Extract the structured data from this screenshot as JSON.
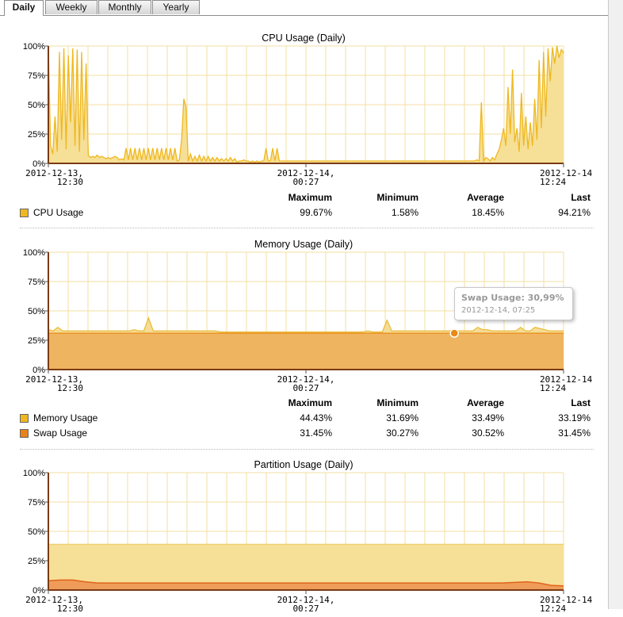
{
  "tabs": [
    {
      "label": "Daily",
      "active": true
    },
    {
      "label": "Weekly",
      "active": false
    },
    {
      "label": "Monthly",
      "active": false
    },
    {
      "label": "Yearly",
      "active": false
    }
  ],
  "stat_headers": [
    "Maximum",
    "Minimum",
    "Average",
    "Last"
  ],
  "colors": {
    "cpu_fill": "#f6df96",
    "cpu_line": "#efb81f",
    "memory_fill": "#f4dd96",
    "memory_line": "#ecb830",
    "swap_fill": "#eeb460",
    "swap_line": "#e88a18",
    "partition_fill": "#f6df96",
    "partition_low_fill": "#ef9c5a",
    "partition_low_line": "#e0631c",
    "grid": "#f3dfa2",
    "axis": "#7a3b14"
  },
  "charts": {
    "cpu": {
      "title": "CPU Usage (Daily)",
      "ticks_y": [
        "100%",
        "75%",
        "50%",
        "25%",
        "0%"
      ],
      "ticks_x": [
        {
          "line1": "2012-12-13,",
          "line2": "12:30"
        },
        {
          "line1": "2012-12-14,",
          "line2": "00:27"
        },
        {
          "line1": "2012-12-14",
          "line2": "12:24"
        }
      ],
      "rows": [
        {
          "name": "CPU Usage",
          "color": "#f0b820",
          "max": "99.67%",
          "min": "1.58%",
          "avg": "18.45%",
          "last": "94.21%"
        }
      ]
    },
    "memory": {
      "title": "Memory Usage (Daily)",
      "ticks_y": [
        "100%",
        "75%",
        "50%",
        "25%",
        "0%"
      ],
      "ticks_x": [
        {
          "line1": "2012-12-13,",
          "line2": "12:30"
        },
        {
          "line1": "2012-12-14,",
          "line2": "00:27"
        },
        {
          "line1": "2012-12-14",
          "line2": "12:24"
        }
      ],
      "rows": [
        {
          "name": "Memory Usage",
          "color": "#f0b820",
          "max": "44.43%",
          "min": "31.69%",
          "avg": "33.49%",
          "last": "33.19%"
        },
        {
          "name": "Swap Usage",
          "color": "#e8821a",
          "max": "31.45%",
          "min": "30.27%",
          "avg": "30.52%",
          "last": "31.45%"
        }
      ],
      "tooltip": {
        "title": "Swap Usage: 30,99%",
        "subtitle": "2012-12-14, 07:25",
        "value": 30.99
      }
    },
    "partition": {
      "title": "Partition Usage (Daily)",
      "ticks_y": [
        "100%",
        "75%",
        "50%",
        "25%",
        "0%"
      ],
      "ticks_x": [
        {
          "line1": "2012-12-13,",
          "line2": "12:30"
        },
        {
          "line1": "2012-12-14,",
          "line2": "00:27"
        },
        {
          "line1": "2012-12-14",
          "line2": "12:24"
        }
      ]
    }
  },
  "chart_data": [
    {
      "type": "area",
      "title": "CPU Usage (Daily)",
      "ylim": [
        0,
        100
      ],
      "grid": true,
      "x_range": [
        "2012-12-13 12:30",
        "2012-12-14 12:24"
      ],
      "series": [
        {
          "name": "CPU Usage",
          "values": [
            100,
            15,
            8,
            40,
            10,
            95,
            20,
            98,
            12,
            92,
            35,
            98,
            15,
            97,
            10,
            95,
            20,
            85,
            7,
            5,
            6,
            5,
            7,
            5,
            6,
            5,
            4,
            5,
            4,
            5,
            6,
            5,
            3,
            4,
            3,
            13,
            3,
            13,
            3,
            13,
            3,
            13,
            3,
            13,
            3,
            13,
            3,
            13,
            3,
            13,
            3,
            13,
            3,
            13,
            3,
            13,
            3,
            13,
            2,
            3,
            20,
            55,
            48,
            2,
            8,
            2,
            6,
            2,
            7,
            2,
            6,
            2,
            6,
            2,
            5,
            2,
            5,
            2,
            4,
            2,
            4,
            2,
            5,
            2,
            4,
            1,
            2,
            2,
            3,
            2,
            2,
            1,
            2,
            1,
            2,
            1,
            2,
            2,
            13,
            2,
            2,
            13,
            2,
            13,
            2,
            2,
            2,
            2,
            2,
            2,
            2,
            2,
            2,
            2,
            2,
            2,
            2,
            2,
            2,
            2,
            2,
            2,
            2,
            2,
            2,
            2,
            2,
            2,
            2,
            2,
            2,
            2,
            2,
            2,
            2,
            2,
            2,
            2,
            2,
            2,
            2,
            2,
            2,
            2,
            2,
            2,
            2,
            2,
            2,
            2,
            2,
            2,
            2,
            2,
            2,
            2,
            2,
            2,
            2,
            2,
            2,
            2,
            2,
            2,
            2,
            2,
            2,
            2,
            2,
            2,
            2,
            2,
            2,
            2,
            2,
            2,
            2,
            2,
            2,
            2,
            2,
            2,
            2,
            2,
            2,
            2,
            2,
            2,
            2,
            2,
            2,
            2,
            2,
            3,
            2,
            52,
            2,
            5,
            4,
            2,
            5,
            3,
            8,
            12,
            20,
            30,
            15,
            65,
            25,
            80,
            18,
            30,
            10,
            60,
            15,
            40,
            12,
            35,
            15,
            55,
            20,
            88,
            30,
            95,
            40,
            98,
            70,
            99,
            85,
            100,
            90,
            97,
            94
          ]
        }
      ]
    },
    {
      "type": "area",
      "title": "Memory Usage (Daily)",
      "ylim": [
        0,
        100
      ],
      "grid": true,
      "x_range": [
        "2012-12-13 12:30",
        "2012-12-14 12:24"
      ],
      "series": [
        {
          "name": "Memory Usage",
          "values": [
            34,
            33,
            36,
            33,
            33,
            33,
            33,
            33,
            33,
            33,
            33,
            33,
            33,
            33,
            33,
            33,
            33,
            33,
            34,
            33,
            33,
            44,
            33,
            33,
            33,
            33,
            33,
            33,
            33,
            33,
            33,
            33,
            33,
            33,
            33,
            33,
            32,
            32,
            32,
            32,
            32,
            32,
            32,
            32,
            32,
            32,
            32,
            32,
            32,
            32,
            32,
            32,
            32,
            32,
            32,
            32,
            32,
            32,
            32,
            32,
            32,
            32,
            32,
            32,
            32,
            32,
            32,
            33,
            32,
            32,
            32,
            42,
            33,
            33,
            33,
            33,
            33,
            33,
            33,
            33,
            33,
            33,
            33,
            33,
            33,
            34,
            33,
            33,
            33,
            33,
            36,
            34,
            34,
            33,
            33,
            33,
            33,
            33,
            33,
            36,
            33,
            33,
            36,
            35,
            34,
            33,
            33,
            33,
            33
          ]
        },
        {
          "name": "Swap Usage",
          "values": [
            31,
            31,
            31,
            31,
            31,
            31,
            31,
            31,
            31,
            31,
            31,
            31,
            31,
            31,
            31,
            31,
            31,
            31,
            31,
            31,
            31,
            31,
            31,
            31,
            31,
            31,
            31,
            31,
            31,
            31,
            31,
            31,
            31,
            31,
            31,
            31,
            31,
            31,
            31,
            31,
            31,
            31,
            31,
            31,
            31,
            31,
            31,
            31,
            31,
            31,
            31,
            31,
            31,
            31,
            31,
            31,
            31,
            31,
            31,
            31,
            31,
            31,
            31,
            31,
            31,
            31,
            31,
            31,
            31,
            31,
            31,
            31,
            31,
            31,
            31,
            31,
            31,
            31,
            31,
            31,
            31,
            31,
            31,
            31,
            31,
            31,
            31,
            31,
            31,
            31,
            31,
            31,
            31,
            31,
            31,
            31,
            31,
            31,
            31,
            31,
            31,
            31,
            31,
            31,
            31,
            31,
            31,
            31,
            31
          ]
        }
      ]
    },
    {
      "type": "area",
      "title": "Partition Usage (Daily)",
      "ylim": [
        0,
        100
      ],
      "grid": true,
      "x_range": [
        "2012-12-13 12:30",
        "2012-12-14 12:24"
      ],
      "series": [
        {
          "values": [
            39,
            39,
            39,
            39,
            39,
            39,
            39,
            39,
            39,
            39,
            39,
            39,
            39,
            39,
            39,
            39,
            39,
            39,
            39,
            39,
            39,
            39,
            39,
            39,
            39,
            39,
            39,
            39,
            39,
            39,
            39,
            39,
            39,
            39,
            39,
            39,
            39,
            39,
            39,
            39
          ]
        },
        {
          "values": [
            8,
            8.5,
            8.5,
            7,
            6,
            6,
            6,
            6,
            6,
            6,
            6,
            6,
            6,
            6,
            6,
            6,
            6,
            6,
            6,
            6,
            6,
            6,
            6,
            6,
            6,
            6,
            6,
            6,
            6,
            6,
            6,
            6,
            6,
            6,
            6,
            6,
            6,
            6,
            6.5,
            7,
            6,
            4,
            3.5
          ]
        }
      ]
    }
  ]
}
